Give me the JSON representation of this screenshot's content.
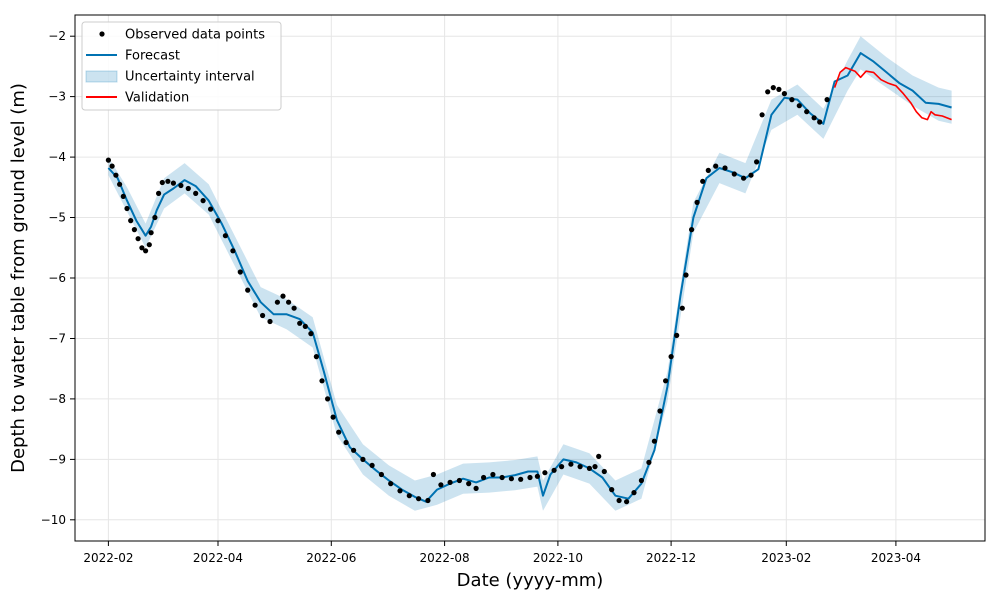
{
  "chart_data": {
    "type": "line",
    "title": "",
    "xlabel": "Date (yyyy-mm)",
    "ylabel": "Depth to water table from ground level (m)",
    "xlim": [
      "2022-01-14",
      "2023-05-19"
    ],
    "ylim": [
      -10.35,
      -1.65
    ],
    "x_ticks": [
      "2022-02-01",
      "2022-04-01",
      "2022-06-01",
      "2022-08-01",
      "2022-10-01",
      "2022-12-01",
      "2023-02-01",
      "2023-04-01"
    ],
    "x_tick_labels": [
      "2022-02",
      "2022-04",
      "2022-06",
      "2022-08",
      "2022-10",
      "2022-12",
      "2023-02",
      "2023-04"
    ],
    "y_ticks": [
      -10,
      -9,
      -8,
      -7,
      -6,
      -5,
      -4,
      -3,
      -2
    ],
    "y_tick_labels": [
      "−10",
      "−9",
      "−8",
      "−7",
      "−6",
      "−5",
      "−4",
      "−3",
      "−2"
    ],
    "grid": true,
    "legend_position": "top-left",
    "colors": {
      "observed": "#000000",
      "forecast": "#0072B2",
      "uncertainty": "#0072B2",
      "validation": "#FF0000",
      "grid": "#e6e6e6"
    },
    "legend": [
      {
        "label": "Observed data points",
        "kind": "dot"
      },
      {
        "label": "Forecast",
        "kind": "line",
        "color": "#0072B2"
      },
      {
        "label": "Uncertainty interval",
        "kind": "band",
        "color": "#0072B2"
      },
      {
        "label": "Validation",
        "kind": "line",
        "color": "#FF0000"
      }
    ],
    "series": [
      {
        "name": "Observed data points",
        "type": "scatter",
        "points": [
          [
            "2022-02-01",
            -4.05
          ],
          [
            "2022-02-03",
            -4.15
          ],
          [
            "2022-02-05",
            -4.3
          ],
          [
            "2022-02-07",
            -4.45
          ],
          [
            "2022-02-09",
            -4.65
          ],
          [
            "2022-02-11",
            -4.85
          ],
          [
            "2022-02-13",
            -5.05
          ],
          [
            "2022-02-15",
            -5.2
          ],
          [
            "2022-02-17",
            -5.35
          ],
          [
            "2022-02-19",
            -5.5
          ],
          [
            "2022-02-21",
            -5.55
          ],
          [
            "2022-02-23",
            -5.45
          ],
          [
            "2022-02-24",
            -5.25
          ],
          [
            "2022-02-26",
            -5.0
          ],
          [
            "2022-02-28",
            -4.6
          ],
          [
            "2022-03-02",
            -4.42
          ],
          [
            "2022-03-05",
            -4.4
          ],
          [
            "2022-03-08",
            -4.43
          ],
          [
            "2022-03-12",
            -4.47
          ],
          [
            "2022-03-16",
            -4.52
          ],
          [
            "2022-03-20",
            -4.6
          ],
          [
            "2022-03-24",
            -4.72
          ],
          [
            "2022-03-28",
            -4.86
          ],
          [
            "2022-04-01",
            -5.05
          ],
          [
            "2022-04-05",
            -5.3
          ],
          [
            "2022-04-09",
            -5.55
          ],
          [
            "2022-04-13",
            -5.9
          ],
          [
            "2022-04-17",
            -6.2
          ],
          [
            "2022-04-21",
            -6.45
          ],
          [
            "2022-04-25",
            -6.62
          ],
          [
            "2022-04-29",
            -6.72
          ],
          [
            "2022-05-03",
            -6.4
          ],
          [
            "2022-05-06",
            -6.3
          ],
          [
            "2022-05-09",
            -6.4
          ],
          [
            "2022-05-12",
            -6.5
          ],
          [
            "2022-05-15",
            -6.75
          ],
          [
            "2022-05-18",
            -6.8
          ],
          [
            "2022-05-21",
            -6.92
          ],
          [
            "2022-05-24",
            -7.3
          ],
          [
            "2022-05-27",
            -7.7
          ],
          [
            "2022-05-30",
            -8.0
          ],
          [
            "2022-06-02",
            -8.3
          ],
          [
            "2022-06-05",
            -8.55
          ],
          [
            "2022-06-09",
            -8.72
          ],
          [
            "2022-06-13",
            -8.85
          ],
          [
            "2022-06-18",
            -9.0
          ],
          [
            "2022-06-23",
            -9.1
          ],
          [
            "2022-06-28",
            -9.25
          ],
          [
            "2022-07-03",
            -9.4
          ],
          [
            "2022-07-08",
            -9.52
          ],
          [
            "2022-07-13",
            -9.6
          ],
          [
            "2022-07-18",
            -9.65
          ],
          [
            "2022-07-23",
            -9.68
          ],
          [
            "2022-07-26",
            -9.25
          ],
          [
            "2022-07-30",
            -9.42
          ],
          [
            "2022-08-04",
            -9.38
          ],
          [
            "2022-08-09",
            -9.35
          ],
          [
            "2022-08-14",
            -9.4
          ],
          [
            "2022-08-18",
            -9.48
          ],
          [
            "2022-08-22",
            -9.3
          ],
          [
            "2022-08-27",
            -9.25
          ],
          [
            "2022-09-01",
            -9.3
          ],
          [
            "2022-09-06",
            -9.32
          ],
          [
            "2022-09-11",
            -9.33
          ],
          [
            "2022-09-16",
            -9.3
          ],
          [
            "2022-09-20",
            -9.28
          ],
          [
            "2022-09-24",
            -9.22
          ],
          [
            "2022-09-29",
            -9.18
          ],
          [
            "2022-10-03",
            -9.12
          ],
          [
            "2022-10-08",
            -9.08
          ],
          [
            "2022-10-13",
            -9.12
          ],
          [
            "2022-10-18",
            -9.15
          ],
          [
            "2022-10-21",
            -9.12
          ],
          [
            "2022-10-23",
            -8.95
          ],
          [
            "2022-10-26",
            -9.2
          ],
          [
            "2022-10-30",
            -9.5
          ],
          [
            "2022-11-03",
            -9.68
          ],
          [
            "2022-11-07",
            -9.7
          ],
          [
            "2022-11-11",
            -9.55
          ],
          [
            "2022-11-15",
            -9.35
          ],
          [
            "2022-11-19",
            -9.05
          ],
          [
            "2022-11-22",
            -8.7
          ],
          [
            "2022-11-25",
            -8.2
          ],
          [
            "2022-11-28",
            -7.7
          ],
          [
            "2022-12-01",
            -7.3
          ],
          [
            "2022-12-04",
            -6.95
          ],
          [
            "2022-12-07",
            -6.5
          ],
          [
            "2022-12-09",
            -5.95
          ],
          [
            "2022-12-12",
            -5.2
          ],
          [
            "2022-12-15",
            -4.75
          ],
          [
            "2022-12-18",
            -4.4
          ],
          [
            "2022-12-21",
            -4.22
          ],
          [
            "2022-12-25",
            -4.15
          ],
          [
            "2022-12-30",
            -4.18
          ],
          [
            "2023-01-04",
            -4.28
          ],
          [
            "2023-01-09",
            -4.35
          ],
          [
            "2023-01-13",
            -4.3
          ],
          [
            "2023-01-16",
            -4.08
          ],
          [
            "2023-01-19",
            -3.3
          ],
          [
            "2023-01-22",
            -2.92
          ],
          [
            "2023-01-25",
            -2.85
          ],
          [
            "2023-01-28",
            -2.88
          ],
          [
            "2023-01-31",
            -2.95
          ],
          [
            "2023-02-04",
            -3.05
          ],
          [
            "2023-02-08",
            -3.15
          ],
          [
            "2023-02-12",
            -3.25
          ],
          [
            "2023-02-16",
            -3.35
          ],
          [
            "2023-02-19",
            -3.42
          ],
          [
            "2023-02-23",
            -3.05
          ]
        ]
      },
      {
        "name": "Forecast",
        "type": "line",
        "points": [
          [
            "2022-02-01",
            -4.18
          ],
          [
            "2022-02-06",
            -4.35
          ],
          [
            "2022-02-11",
            -4.72
          ],
          [
            "2022-02-16",
            -5.05
          ],
          [
            "2022-02-21",
            -5.3
          ],
          [
            "2022-02-24",
            -5.15
          ],
          [
            "2022-02-27",
            -4.88
          ],
          [
            "2022-03-03",
            -4.62
          ],
          [
            "2022-03-08",
            -4.52
          ],
          [
            "2022-03-14",
            -4.38
          ],
          [
            "2022-03-20",
            -4.48
          ],
          [
            "2022-03-27",
            -4.72
          ],
          [
            "2022-04-03",
            -5.1
          ],
          [
            "2022-04-10",
            -5.55
          ],
          [
            "2022-04-17",
            -6.05
          ],
          [
            "2022-04-24",
            -6.4
          ],
          [
            "2022-05-01",
            -6.6
          ],
          [
            "2022-05-08",
            -6.6
          ],
          [
            "2022-05-15",
            -6.68
          ],
          [
            "2022-05-22",
            -6.9
          ],
          [
            "2022-05-28",
            -7.55
          ],
          [
            "2022-06-04",
            -8.35
          ],
          [
            "2022-06-11",
            -8.8
          ],
          [
            "2022-06-18",
            -9.0
          ],
          [
            "2022-06-25",
            -9.18
          ],
          [
            "2022-07-02",
            -9.35
          ],
          [
            "2022-07-09",
            -9.5
          ],
          [
            "2022-07-16",
            -9.62
          ],
          [
            "2022-07-22",
            -9.7
          ],
          [
            "2022-07-28",
            -9.5
          ],
          [
            "2022-08-04",
            -9.4
          ],
          [
            "2022-08-11",
            -9.32
          ],
          [
            "2022-08-18",
            -9.38
          ],
          [
            "2022-08-25",
            -9.3
          ],
          [
            "2022-09-01",
            -9.3
          ],
          [
            "2022-09-08",
            -9.26
          ],
          [
            "2022-09-15",
            -9.2
          ],
          [
            "2022-09-20",
            -9.2
          ],
          [
            "2022-09-23",
            -9.6
          ],
          [
            "2022-09-27",
            -9.25
          ],
          [
            "2022-10-04",
            -9.0
          ],
          [
            "2022-10-11",
            -9.05
          ],
          [
            "2022-10-18",
            -9.15
          ],
          [
            "2022-10-25",
            -9.3
          ],
          [
            "2022-11-01",
            -9.6
          ],
          [
            "2022-11-08",
            -9.65
          ],
          [
            "2022-11-15",
            -9.4
          ],
          [
            "2022-11-22",
            -8.85
          ],
          [
            "2022-11-29",
            -7.8
          ],
          [
            "2022-12-06",
            -6.3
          ],
          [
            "2022-12-13",
            -5.0
          ],
          [
            "2022-12-20",
            -4.35
          ],
          [
            "2022-12-27",
            -4.18
          ],
          [
            "2023-01-03",
            -4.25
          ],
          [
            "2023-01-10",
            -4.35
          ],
          [
            "2023-01-17",
            -4.2
          ],
          [
            "2023-01-24",
            -3.3
          ],
          [
            "2023-01-31",
            -3.02
          ],
          [
            "2023-02-07",
            -3.05
          ],
          [
            "2023-02-14",
            -3.28
          ],
          [
            "2023-02-21",
            -3.45
          ],
          [
            "2023-02-27",
            -2.75
          ],
          [
            "2023-03-06",
            -2.65
          ],
          [
            "2023-03-13",
            -2.28
          ],
          [
            "2023-03-20",
            -2.42
          ],
          [
            "2023-03-27",
            -2.6
          ],
          [
            "2023-04-03",
            -2.78
          ],
          [
            "2023-04-10",
            -2.9
          ],
          [
            "2023-04-17",
            -3.1
          ],
          [
            "2023-04-24",
            -3.12
          ],
          [
            "2023-05-01",
            -3.18
          ]
        ]
      },
      {
        "name": "Uncertainty interval",
        "type": "area",
        "points": [
          [
            "2022-02-01",
            -4.3,
            -4.0
          ],
          [
            "2022-02-11",
            -4.9,
            -4.5
          ],
          [
            "2022-02-21",
            -5.5,
            -5.1
          ],
          [
            "2022-03-03",
            -4.85,
            -4.35
          ],
          [
            "2022-03-14",
            -4.6,
            -4.1
          ],
          [
            "2022-03-27",
            -4.95,
            -4.45
          ],
          [
            "2022-04-10",
            -5.8,
            -5.3
          ],
          [
            "2022-04-24",
            -6.65,
            -6.15
          ],
          [
            "2022-05-08",
            -6.85,
            -6.35
          ],
          [
            "2022-05-22",
            -7.15,
            -6.65
          ],
          [
            "2022-06-04",
            -8.6,
            -8.1
          ],
          [
            "2022-06-18",
            -9.25,
            -8.75
          ],
          [
            "2022-07-02",
            -9.6,
            -9.1
          ],
          [
            "2022-07-16",
            -9.85,
            -9.35
          ],
          [
            "2022-07-28",
            -9.75,
            -9.25
          ],
          [
            "2022-08-11",
            -9.57,
            -9.07
          ],
          [
            "2022-08-25",
            -9.55,
            -9.05
          ],
          [
            "2022-09-08",
            -9.51,
            -9.01
          ],
          [
            "2022-09-20",
            -9.45,
            -8.95
          ],
          [
            "2022-09-23",
            -9.85,
            -9.35
          ],
          [
            "2022-10-04",
            -9.25,
            -8.75
          ],
          [
            "2022-10-18",
            -9.4,
            -8.9
          ],
          [
            "2022-11-01",
            -9.85,
            -9.35
          ],
          [
            "2022-11-15",
            -9.65,
            -9.15
          ],
          [
            "2022-11-29",
            -8.05,
            -7.55
          ],
          [
            "2022-12-13",
            -5.25,
            -4.75
          ],
          [
            "2022-12-27",
            -4.43,
            -3.93
          ],
          [
            "2023-01-10",
            -4.6,
            -4.1
          ],
          [
            "2023-01-24",
            -3.55,
            -3.05
          ],
          [
            "2023-02-07",
            -3.3,
            -2.8
          ],
          [
            "2023-02-21",
            -3.7,
            -3.2
          ],
          [
            "2023-03-06",
            -2.9,
            -2.4
          ],
          [
            "2023-03-13",
            -2.55,
            -2.0
          ],
          [
            "2023-03-27",
            -2.85,
            -2.35
          ],
          [
            "2023-04-10",
            -3.15,
            -2.65
          ],
          [
            "2023-04-24",
            -3.4,
            -2.85
          ],
          [
            "2023-05-01",
            -3.45,
            -2.9
          ]
        ]
      },
      {
        "name": "Validation",
        "type": "line",
        "points": [
          [
            "2023-02-27",
            -2.85
          ],
          [
            "2023-03-02",
            -2.6
          ],
          [
            "2023-03-05",
            -2.52
          ],
          [
            "2023-03-10",
            -2.58
          ],
          [
            "2023-03-13",
            -2.68
          ],
          [
            "2023-03-16",
            -2.58
          ],
          [
            "2023-03-20",
            -2.6
          ],
          [
            "2023-03-24",
            -2.72
          ],
          [
            "2023-03-28",
            -2.78
          ],
          [
            "2023-04-01",
            -2.82
          ],
          [
            "2023-04-05",
            -2.95
          ],
          [
            "2023-04-09",
            -3.1
          ],
          [
            "2023-04-12",
            -3.25
          ],
          [
            "2023-04-15",
            -3.35
          ],
          [
            "2023-04-18",
            -3.38
          ],
          [
            "2023-04-20",
            -3.25
          ],
          [
            "2023-04-22",
            -3.3
          ],
          [
            "2023-04-26",
            -3.32
          ],
          [
            "2023-05-01",
            -3.38
          ]
        ]
      }
    ]
  }
}
